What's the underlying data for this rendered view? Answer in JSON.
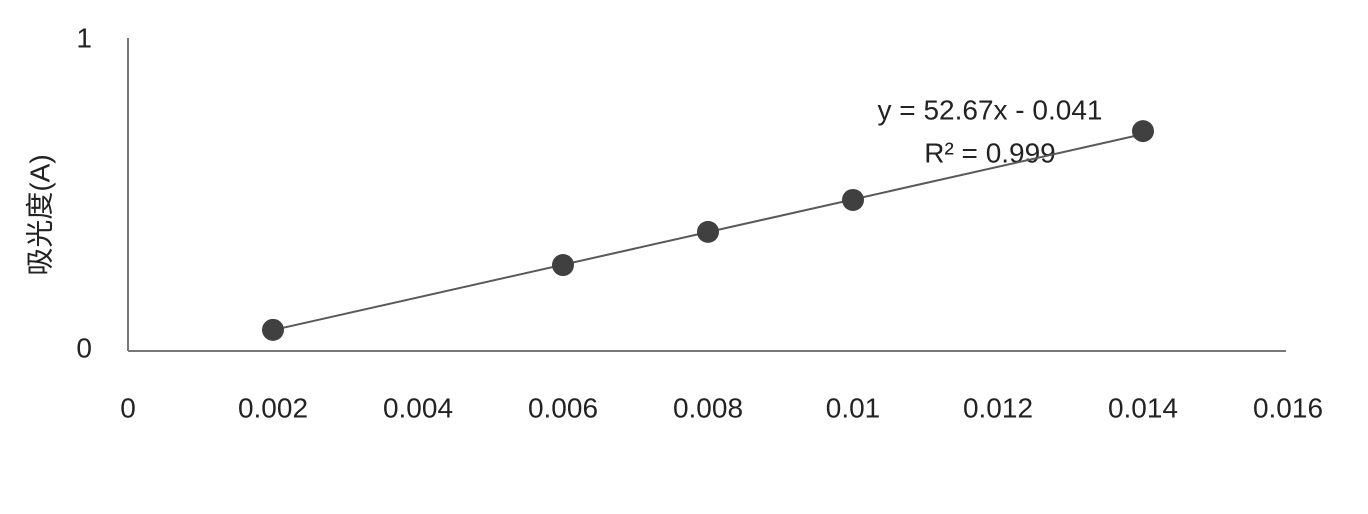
{
  "chart_data": {
    "type": "scatter",
    "y_label": "吸光度(A)",
    "x": [
      0.002,
      0.006,
      0.008,
      0.01,
      0.014
    ],
    "values": [
      0.065,
      0.274,
      0.381,
      0.484,
      0.706
    ],
    "color": "#404040",
    "xlim": [
      0,
      0.016
    ],
    "xticks": [
      0,
      0.002,
      0.004,
      0.006,
      0.008,
      0.01,
      0.012,
      0.014,
      0.016
    ],
    "ylim": [
      0,
      1
    ],
    "yticks": [
      0,
      1
    ],
    "trendline": {
      "slope": 52.67,
      "intercept": -0.041,
      "color": "#595959",
      "label": "y = 52.67x - 0.041",
      "r2_label": "R² = 0.999"
    }
  }
}
